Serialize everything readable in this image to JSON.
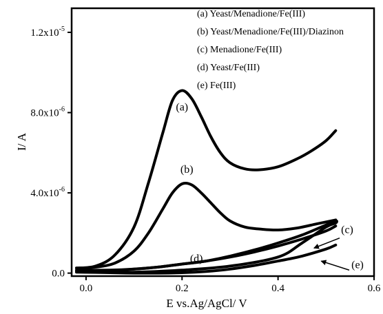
{
  "chart_data": {
    "type": "line",
    "xlabel": "E vs.Ag/AgCl/ V",
    "ylabel": "I/ A",
    "xlim": [
      -0.03,
      0.6
    ],
    "ylim": [
      -1.5e-07,
      1.32e-05
    ],
    "x_ticks": [
      {
        "value": 0.0,
        "label": "0.0"
      },
      {
        "value": 0.2,
        "label": "0.2"
      },
      {
        "value": 0.4,
        "label": "0.4"
      },
      {
        "value": 0.6,
        "label": "0.6"
      }
    ],
    "y_ticks": [
      {
        "value": 0.0,
        "base": "0.0",
        "exp": ""
      },
      {
        "value": 4e-06,
        "base": "4.0x10",
        "exp": "-6"
      },
      {
        "value": 8e-06,
        "base": "8.0x10",
        "exp": "-6"
      },
      {
        "value": 1.2e-05,
        "base": "1.2x10",
        "exp": "-5"
      }
    ],
    "legend": {
      "placement": "top-right",
      "entries": [
        "(a) Yeast/Menadione/Fe(III)",
        "(b) Yeast/Menadione/Fe(III)/Diazinon",
        "(c) Menadione/Fe(III)",
        "(d) Yeast/Fe(III)",
        "(e) Fe(III)"
      ]
    },
    "grid": false,
    "series": [
      {
        "label": "(a)",
        "x": [
          -0.02,
          0.02,
          0.06,
          0.1,
          0.13,
          0.16,
          0.18,
          0.2,
          0.22,
          0.24,
          0.26,
          0.28,
          0.3,
          0.33,
          0.36,
          0.4,
          0.44,
          0.47,
          0.5,
          0.52
        ],
        "y": [
          2.5e-07,
          3.5e-07,
          9e-07,
          2.3e-06,
          4.5e-06,
          7e-06,
          8.6e-06,
          9.1e-06,
          8.7e-06,
          7.8e-06,
          6.8e-06,
          6e-06,
          5.5e-06,
          5.2e-06,
          5.15e-06,
          5.3e-06,
          5.7e-06,
          6.1e-06,
          6.6e-06,
          7.1e-06
        ]
      },
      {
        "label": "(b)",
        "x": [
          -0.02,
          0.02,
          0.06,
          0.1,
          0.13,
          0.16,
          0.18,
          0.2,
          0.22,
          0.24,
          0.26,
          0.28,
          0.3,
          0.33,
          0.36,
          0.4,
          0.44,
          0.48,
          0.52
        ],
        "y": [
          2.5e-07,
          3e-07,
          5e-07,
          1.1e-06,
          2e-06,
          3.2e-06,
          4e-06,
          4.45e-06,
          4.4e-06,
          4e-06,
          3.5e-06,
          3e-06,
          2.6e-06,
          2.3e-06,
          2.2e-06,
          2.15e-06,
          2.25e-06,
          2.45e-06,
          2.65e-06
        ]
      },
      {
        "label": "(c)",
        "x": [
          -0.02,
          0.05,
          0.1,
          0.15,
          0.2,
          0.25,
          0.3,
          0.35,
          0.4,
          0.45,
          0.5,
          0.52,
          0.52,
          0.5,
          0.45,
          0.4,
          0.3,
          0.2,
          0.1,
          0.0,
          -0.02
        ],
        "y": [
          1.5e-07,
          1.5e-07,
          2e-07,
          3e-07,
          4.5e-07,
          6e-07,
          8.5e-07,
          1.15e-06,
          1.5e-06,
          1.9e-06,
          2.4e-06,
          2.6e-06,
          2.5e-06,
          2.3e-06,
          1.5e-06,
          8e-07,
          3.5e-07,
          1.5e-07,
          5e-08,
          5e-08,
          1e-07
        ]
      },
      {
        "label": "(d)",
        "x": [
          -0.02,
          0.05,
          0.1,
          0.15,
          0.2,
          0.25,
          0.3,
          0.35,
          0.4,
          0.45,
          0.5,
          0.52
        ],
        "y": [
          1e-07,
          1.2e-07,
          2e-07,
          3e-07,
          4.5e-07,
          6e-07,
          8e-07,
          1.05e-06,
          1.35e-06,
          1.7e-06,
          2.1e-06,
          2.35e-06
        ]
      },
      {
        "label": "(e)",
        "x": [
          -0.02,
          0.05,
          0.1,
          0.15,
          0.2,
          0.25,
          0.3,
          0.35,
          0.4,
          0.45,
          0.5,
          0.52
        ],
        "y": [
          5e-08,
          2e-08,
          0.0,
          0.0,
          2e-08,
          8e-08,
          2e-07,
          3.8e-07,
          6e-07,
          8.5e-07,
          1.2e-06,
          1.4e-06
        ]
      }
    ]
  }
}
